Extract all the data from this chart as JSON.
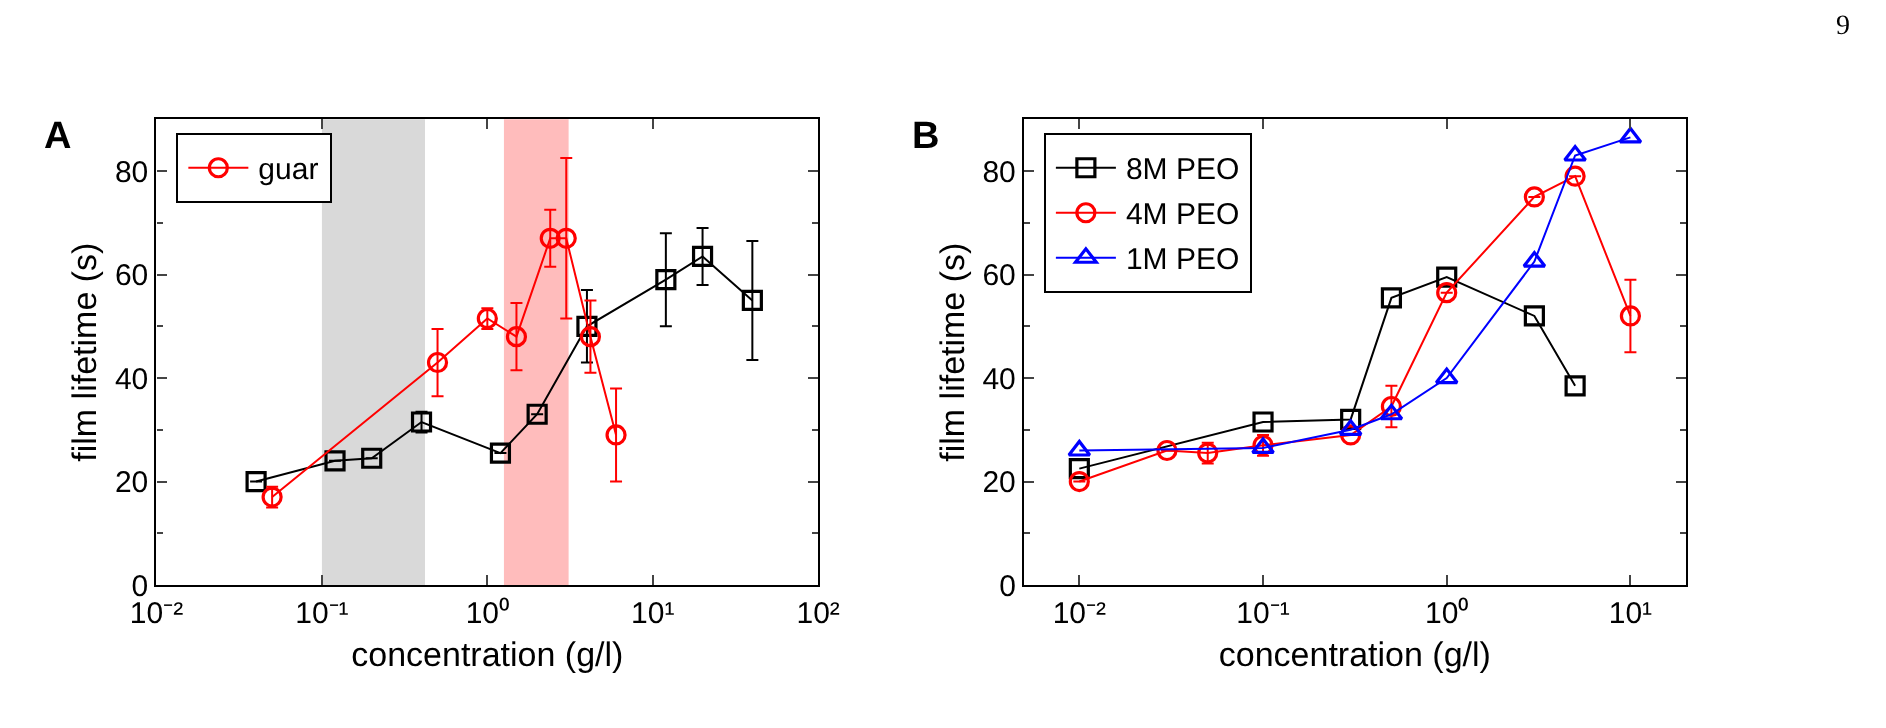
{
  "chart_data": [
    {
      "type": "line",
      "title": "A",
      "xlabel": "concentration (g/l)",
      "ylabel": "film lifetime (s)",
      "log": "x",
      "xlim": [
        0.01,
        100
      ],
      "ylim": [
        0,
        90
      ],
      "xticks": [
        {
          "value": 0.01,
          "label": "10⁻²"
        },
        {
          "value": 0.1,
          "label": "10⁻¹"
        },
        {
          "value": 1,
          "label": "10⁰"
        },
        {
          "value": 10,
          "label": "10¹"
        },
        {
          "value": 100,
          "label": "10²"
        }
      ],
      "yticks": [
        0,
        20,
        40,
        60,
        80
      ],
      "grid": false,
      "legend": "top left",
      "line_style": "solid",
      "bands": [
        {
          "axis": "x",
          "from": 0.1,
          "to": 0.42,
          "color": "#d9d9d9"
        },
        {
          "axis": "x",
          "from": 1.26,
          "to": 3.1,
          "color": "#ffbcbc"
        }
      ],
      "series": [
        {
          "color": "#000000",
          "marker": "square",
          "x": [
            0.04,
            0.12,
            0.2,
            0.4,
            1.2,
            2,
            4,
            12,
            20,
            40
          ],
          "values": [
            20,
            24,
            24.5,
            31.5,
            25.5,
            33,
            50,
            59,
            63.5,
            55
          ],
          "errors": [
            null,
            null,
            null,
            2,
            null,
            null,
            7,
            9,
            5.5,
            11.5
          ]
        },
        {
          "name": "guar",
          "color": "#ff0000",
          "marker": "circle",
          "x": [
            0.05,
            0.5,
            1,
            1.5,
            2.4,
            3,
            4.2,
            6
          ],
          "values": [
            17,
            43,
            51.5,
            48,
            67,
            67,
            48,
            29
          ],
          "errors": [
            2,
            6.5,
            2,
            6.5,
            5.5,
            15.5,
            7,
            9
          ]
        }
      ]
    },
    {
      "type": "line",
      "title": "B",
      "xlabel": "concentration (g/l)",
      "ylabel": "film lifetime (s)",
      "log": "x",
      "xlim": [
        0.005,
        20
      ],
      "ylim": [
        0,
        90
      ],
      "xticks": [
        {
          "value": 0.01,
          "label": "10⁻²"
        },
        {
          "value": 0.1,
          "label": "10⁻¹"
        },
        {
          "value": 1,
          "label": "10⁰"
        },
        {
          "value": 10,
          "label": "10¹"
        }
      ],
      "yticks": [
        0,
        20,
        40,
        60,
        80
      ],
      "grid": false,
      "legend": "top left",
      "line_style": "solid",
      "annotations": [
        "9"
      ],
      "series": [
        {
          "name": "8M PEO",
          "color": "#000000",
          "marker": "square",
          "x": [
            0.01,
            0.1,
            0.3,
            0.5,
            1,
            3,
            5
          ],
          "values": [
            22.5,
            31.5,
            32,
            55.5,
            59.5,
            52,
            38.5
          ]
        },
        {
          "name": "4M PEO",
          "color": "#ff0000",
          "marker": "circle",
          "x": [
            0.01,
            0.03,
            0.05,
            0.1,
            0.3,
            0.5,
            1,
            3,
            5,
            10
          ],
          "values": [
            20,
            26,
            25.5,
            27,
            29,
            34.5,
            56.5,
            75,
            79,
            52
          ],
          "errors": [
            null,
            null,
            2,
            2,
            null,
            4,
            null,
            null,
            null,
            7
          ]
        },
        {
          "name": "1M PEO",
          "color": "#0000ff",
          "marker": "triangle",
          "x": [
            0.01,
            0.1,
            0.3,
            0.5,
            1,
            3,
            5,
            10
          ],
          "values": [
            26,
            26.5,
            30,
            33,
            40,
            62.5,
            83,
            86.5
          ]
        }
      ]
    }
  ]
}
